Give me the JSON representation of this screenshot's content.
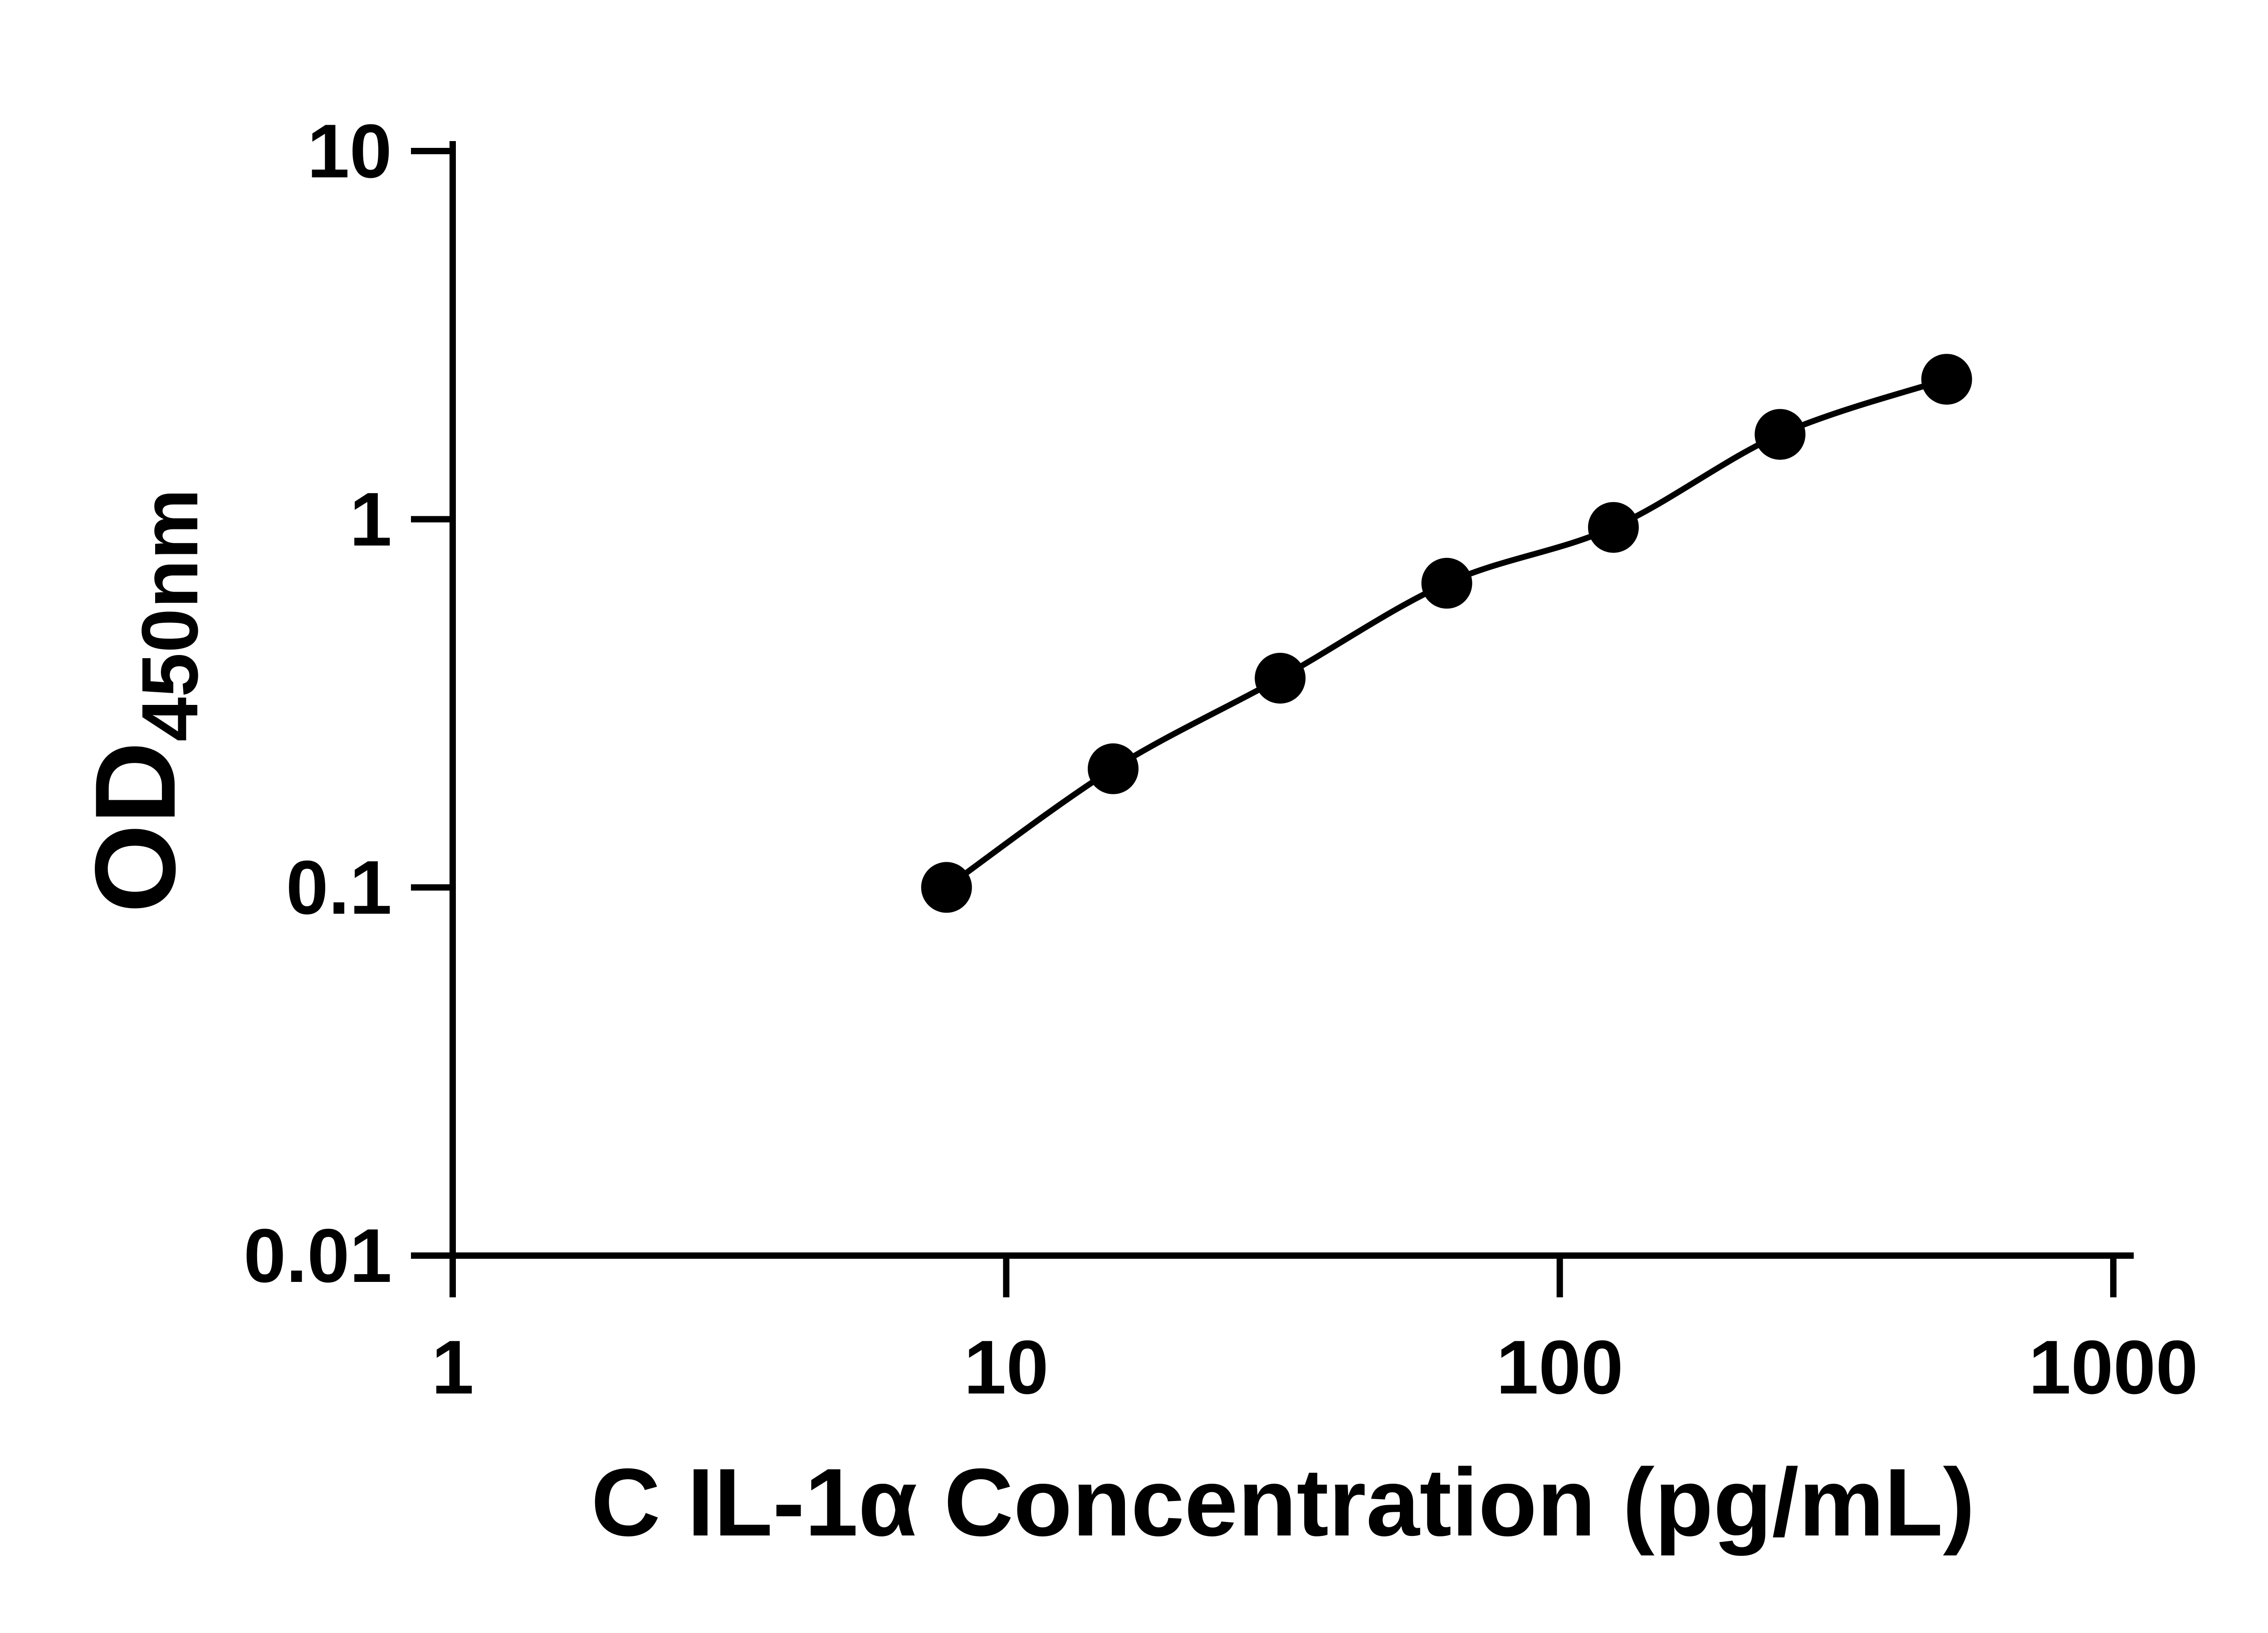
{
  "figure": {
    "background_color": "#ffffff",
    "text_color": "#000000"
  },
  "chart_data": {
    "type": "scatter",
    "subtype": "elisa-standard-curve",
    "title": "",
    "xlabel": "C IL-1α Concentration (pg/mL)",
    "ylabel_main": "OD",
    "ylabel_sub": "450nm",
    "xscale": "log10",
    "yscale": "log10",
    "xlim": [
      1,
      1000
    ],
    "ylim": [
      0.01,
      10
    ],
    "x_ticks": [
      1,
      10,
      100,
      1000
    ],
    "x_tick_labels": [
      "1",
      "10",
      "100",
      "1000"
    ],
    "y_ticks": [
      0.01,
      0.1,
      1,
      10
    ],
    "y_tick_labels": [
      "0.01",
      "0.1",
      "1",
      "10"
    ],
    "x": [
      7.8,
      15.6,
      31.25,
      62.5,
      125,
      250,
      500
    ],
    "y": [
      0.1,
      0.21,
      0.37,
      0.67,
      0.95,
      1.7,
      2.4
    ],
    "grid": false,
    "legend": false,
    "marker": {
      "shape": "circle",
      "color": "#000000"
    },
    "line": {
      "style": "smooth",
      "color": "#000000"
    },
    "axis_color": "#000000"
  }
}
